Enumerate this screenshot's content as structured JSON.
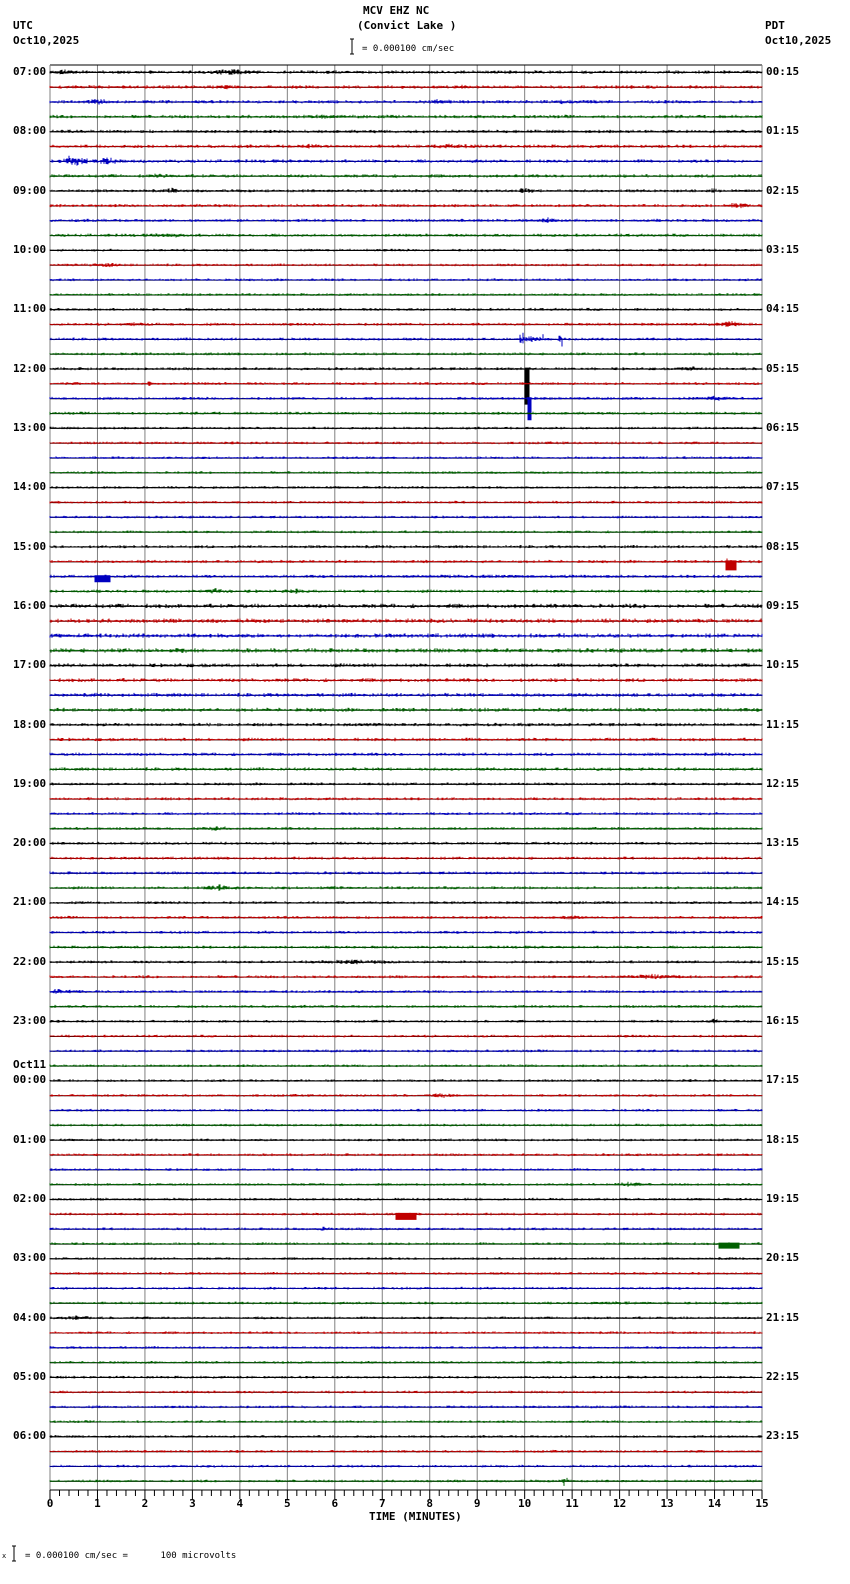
{
  "header": {
    "station": "MCV EHZ NC",
    "location": "(Convict Lake )",
    "left_tz": "UTC",
    "left_date": "Oct10,2025",
    "right_tz": "PDT",
    "right_date": "Oct10,2025",
    "scale_text": "= 0.000100 cm/sec"
  },
  "footer": {
    "scale_prefix": "x",
    "scale_text": "= 0.000100 cm/sec =      100 microvolts"
  },
  "colors": {
    "trace": [
      "#000000",
      "#c00000",
      "#0000c0",
      "#006000"
    ],
    "grid": "#808080",
    "baseline": "#000000"
  },
  "chart_data": {
    "type": "line",
    "title": "MCV EHZ NC (Convict Lake )",
    "subtitle": "Helicorder seismogram, 15 minutes per line, Oct10,2025 07:00 UTC to Oct11,2025 06:45 UTC",
    "xlabel": "TIME (MINUTES)",
    "ylabel": "",
    "xlim": [
      0,
      15
    ],
    "x_ticks": [
      0,
      1,
      2,
      3,
      4,
      5,
      6,
      7,
      8,
      9,
      10,
      11,
      12,
      13,
      14,
      15
    ],
    "minor_ticks_per_minute": 5,
    "grid": true,
    "scale": "0.000100 cm/sec = 100 microvolts",
    "rows_per_hour": 4,
    "left_hour_labels": [
      "07:00",
      "08:00",
      "09:00",
      "10:00",
      "11:00",
      "12:00",
      "13:00",
      "14:00",
      "15:00",
      "16:00",
      "17:00",
      "18:00",
      "19:00",
      "20:00",
      "21:00",
      "22:00",
      "23:00",
      "00:00",
      "01:00",
      "02:00",
      "03:00",
      "04:00",
      "05:00",
      "06:00"
    ],
    "left_date_change": {
      "index": 17,
      "label": "Oct11"
    },
    "right_hour_labels": [
      "00:15",
      "01:15",
      "02:15",
      "03:15",
      "04:15",
      "05:15",
      "06:15",
      "07:15",
      "08:15",
      "09:15",
      "10:15",
      "11:15",
      "12:15",
      "13:15",
      "14:15",
      "15:15",
      "16:15",
      "17:15",
      "18:15",
      "19:15",
      "20:15",
      "21:15",
      "22:15",
      "23:15"
    ],
    "noise_level_by_hour": [
      1.2,
      1.2,
      1.1,
      0.9,
      1.0,
      1.0,
      0.9,
      0.9,
      1.1,
      1.6,
      1.4,
      1.2,
      1.0,
      1.0,
      1.0,
      1.0,
      0.9,
      0.9,
      0.9,
      0.9,
      0.9,
      0.9,
      0.9,
      0.9
    ],
    "events": [
      {
        "row": 0,
        "minute": 0.3,
        "width": 0.4,
        "amp": 4
      },
      {
        "row": 0,
        "minute": 3.8,
        "width": 1.0,
        "amp": 4
      },
      {
        "row": 0,
        "minute": 10.3,
        "width": 0.3,
        "amp": 3
      },
      {
        "row": 1,
        "minute": 3.7,
        "width": 0.3,
        "amp": 3
      },
      {
        "row": 1,
        "minute": 8.7,
        "width": 0.4,
        "amp": 3
      },
      {
        "row": 2,
        "minute": 1.0,
        "width": 0.5,
        "amp": 4
      },
      {
        "row": 2,
        "minute": 8.2,
        "width": 1.0,
        "amp": 3
      },
      {
        "row": 2,
        "minute": 11.0,
        "width": 1.5,
        "amp": 3
      },
      {
        "row": 3,
        "minute": 5.8,
        "width": 0.8,
        "amp": 3
      },
      {
        "row": 5,
        "minute": 5.5,
        "width": 0.5,
        "amp": 3
      },
      {
        "row": 5,
        "minute": 8.5,
        "width": 1.2,
        "amp": 3
      },
      {
        "row": 6,
        "minute": 0.5,
        "width": 0.6,
        "amp": 7
      },
      {
        "row": 6,
        "minute": 1.2,
        "width": 0.6,
        "amp": 5
      },
      {
        "row": 6,
        "minute": 9.0,
        "width": 0.3,
        "amp": 3
      },
      {
        "row": 7,
        "minute": 2.3,
        "width": 0.7,
        "amp": 3
      },
      {
        "row": 8,
        "minute": 2.6,
        "width": 0.3,
        "amp": 4
      },
      {
        "row": 8,
        "minute": 10.0,
        "width": 0.4,
        "amp": 4
      },
      {
        "row": 8,
        "minute": 14.0,
        "width": 0.4,
        "amp": 3
      },
      {
        "row": 9,
        "minute": 14.5,
        "width": 0.5,
        "amp": 4
      },
      {
        "row": 10,
        "minute": 10.5,
        "width": 0.8,
        "amp": 3
      },
      {
        "row": 11,
        "minute": 2.5,
        "width": 1.0,
        "amp": 3
      },
      {
        "row": 13,
        "minute": 1.2,
        "width": 0.6,
        "amp": 3
      },
      {
        "row": 17,
        "minute": 1.8,
        "width": 0.5,
        "amp": 3
      },
      {
        "row": 17,
        "minute": 14.3,
        "width": 0.6,
        "amp": 4
      },
      {
        "row": 18,
        "minute": 10.15,
        "width": 0.5,
        "amp": 12,
        "spiky": true
      },
      {
        "row": 18,
        "minute": 10.75,
        "width": 0.1,
        "amp": 18,
        "spiky": true
      },
      {
        "row": 20,
        "minute": 13.5,
        "width": 0.6,
        "amp": 3
      },
      {
        "row": 21,
        "minute": 2.1,
        "width": 0.1,
        "amp": 5
      },
      {
        "row": 22,
        "minute": 14.0,
        "width": 1.0,
        "amp": 3
      },
      {
        "row": 20,
        "minute": 10.05,
        "width": 0.03,
        "amp": 36,
        "spike": true
      },
      {
        "row": 22,
        "minute": 10.1,
        "width": 0.02,
        "amp": 22,
        "spike": true
      },
      {
        "row": 33,
        "minute": 14.3,
        "width": 0.2,
        "amp": 6
      },
      {
        "row": 33,
        "minute": 14.35,
        "width": 0.1,
        "amp": 9,
        "spike": true
      },
      {
        "row": 34,
        "minute": 1.1,
        "width": 0.15,
        "amp": 6,
        "spike": true
      },
      {
        "row": 34,
        "minute": 9.0,
        "width": 6.0,
        "amp": 2
      },
      {
        "row": 35,
        "minute": 3.5,
        "width": 0.8,
        "amp": 3
      },
      {
        "row": 35,
        "minute": 5.2,
        "width": 0.5,
        "amp": 3
      },
      {
        "row": 36,
        "minute": 11.0,
        "width": 0.5,
        "amp": 3
      },
      {
        "row": 39,
        "minute": 2.8,
        "width": 0.2,
        "amp": 4
      },
      {
        "row": 44,
        "minute": 6.8,
        "width": 1.0,
        "amp": 2
      },
      {
        "row": 51,
        "minute": 3.5,
        "width": 0.6,
        "amp": 3
      },
      {
        "row": 51,
        "minute": 11.5,
        "width": 0.5,
        "amp": 2
      },
      {
        "row": 55,
        "minute": 3.6,
        "width": 0.8,
        "amp": 4
      },
      {
        "row": 55,
        "minute": 6.0,
        "width": 1.0,
        "amp": 2
      },
      {
        "row": 57,
        "minute": 11.0,
        "width": 0.6,
        "amp": 3
      },
      {
        "row": 60,
        "minute": 6.5,
        "width": 2.0,
        "amp": 3
      },
      {
        "row": 61,
        "minute": 12.8,
        "width": 1.8,
        "amp": 3
      },
      {
        "row": 62,
        "minute": 0.2,
        "width": 1.0,
        "amp": 3
      },
      {
        "row": 62,
        "minute": 6.5,
        "width": 0.3,
        "amp": 3
      },
      {
        "row": 64,
        "minute": 14.0,
        "width": 0.3,
        "amp": 3
      },
      {
        "row": 69,
        "minute": 8.3,
        "width": 0.7,
        "amp": 3
      },
      {
        "row": 75,
        "minute": 12.2,
        "width": 0.6,
        "amp": 4
      },
      {
        "row": 77,
        "minute": 7.5,
        "width": 0.2,
        "amp": 6,
        "spike": true
      },
      {
        "row": 78,
        "minute": 5.8,
        "width": 0.5,
        "amp": 3
      },
      {
        "row": 79,
        "minute": 14.3,
        "width": 0.2,
        "amp": 5,
        "spike": true
      },
      {
        "row": 83,
        "minute": 12.0,
        "width": 1.5,
        "amp": 2
      },
      {
        "row": 84,
        "minute": 0.5,
        "width": 0.8,
        "amp": 3
      },
      {
        "row": 84,
        "minute": 4.5,
        "width": 0.4,
        "amp": 2
      },
      {
        "row": 95,
        "minute": 10.85,
        "width": 0.3,
        "amp": 7,
        "spiky": true
      }
    ]
  }
}
